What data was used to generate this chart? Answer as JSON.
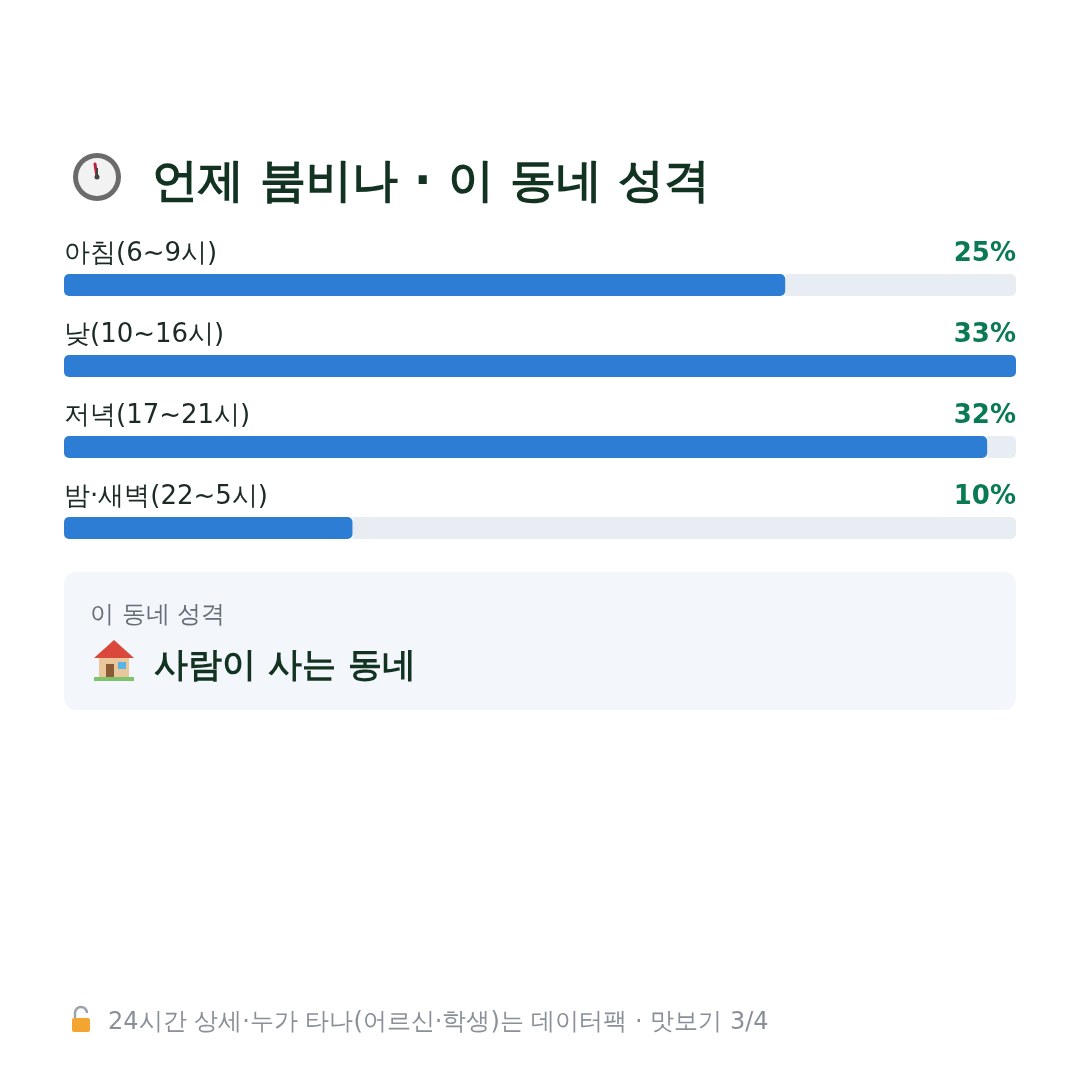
{
  "chart_data": {
    "type": "bar",
    "orientation": "horizontal",
    "title": "언제 붐비나 · 이 동네 성격",
    "categories": [
      "아침(6~9시)",
      "낮(10~16시)",
      "저녁(17~21시)",
      "밤·새벽(22~5시)"
    ],
    "values": [
      25,
      33,
      32,
      10
    ],
    "value_labels": [
      "25%",
      "33%",
      "32%",
      "10%"
    ],
    "color": "#2e7dd4",
    "annotations": [
      "이 동네 성격",
      "사람이 사는 동네",
      "24시간 상세·누가 타나(어르신·학생)는 데이터팩 · 맛보기 3/4"
    ]
  }
}
